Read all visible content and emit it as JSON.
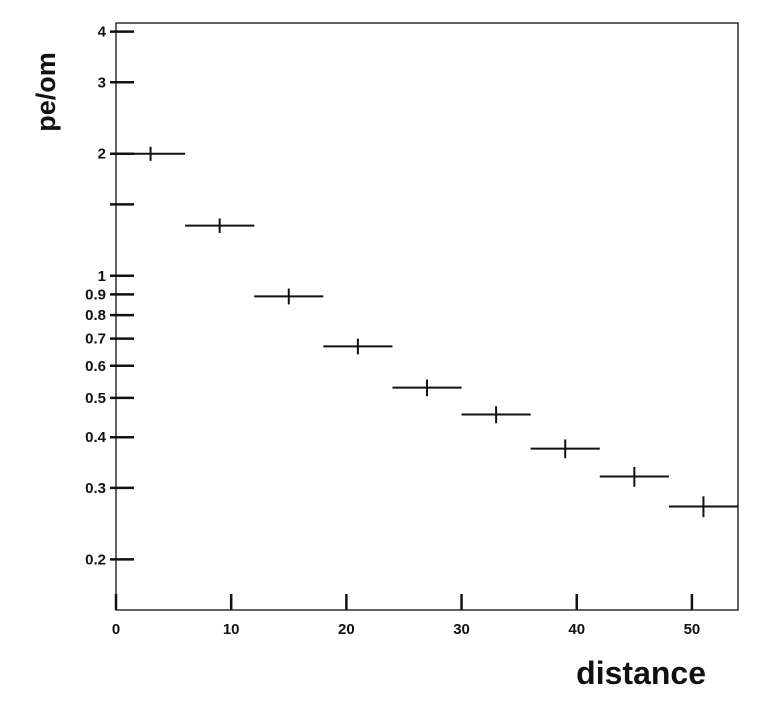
{
  "chart_data": {
    "type": "scatter",
    "title": "",
    "xlabel": "distance",
    "ylabel": "pe/om",
    "xlim": [
      0,
      54
    ],
    "ylim": [
      0.15,
      4.2
    ],
    "y_scale": "log",
    "grid": false,
    "legend": "none",
    "x_ticks": [
      0,
      10,
      20,
      30,
      40,
      50
    ],
    "x_tick_labels": [
      "0",
      "10",
      "20",
      "30",
      "40",
      "50"
    ],
    "y_labeled_ticks": [
      0.2,
      0.3,
      0.4,
      0.5,
      0.6,
      0.7,
      0.8,
      0.9,
      1,
      2,
      3,
      4
    ],
    "y_tick_labels": [
      "0.2",
      "0.3",
      "0.4",
      "0.5",
      "0.6",
      "0.7",
      "0.8",
      "0.9",
      "1",
      "2",
      "3",
      "4"
    ],
    "y_unlabeled_ticks": [
      1.5
    ],
    "series": [
      {
        "x": [
          3,
          9,
          15,
          21,
          27,
          33,
          39,
          45,
          51
        ],
        "x_err": [
          3,
          3,
          3,
          3,
          3,
          3,
          3,
          3,
          3
        ],
        "y": [
          2.0,
          1.33,
          0.89,
          0.67,
          0.53,
          0.455,
          0.375,
          0.32,
          0.27
        ],
        "y_err": [
          0.08,
          0.055,
          0.04,
          0.03,
          0.025,
          0.022,
          0.02,
          0.018,
          0.016
        ]
      }
    ],
    "colors": {
      "axis": "#111111",
      "marker": "#111111",
      "background": "#ffffff"
    }
  }
}
